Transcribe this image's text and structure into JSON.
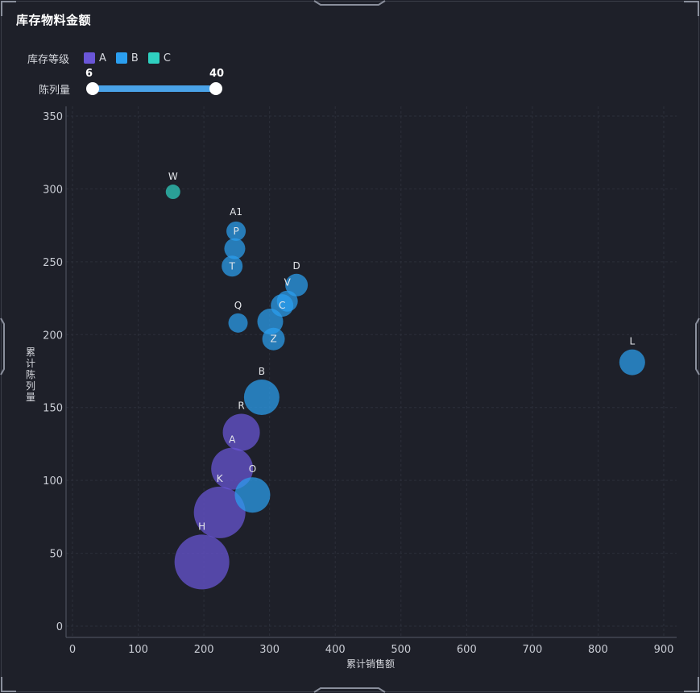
{
  "title": "库存物料金额",
  "legend": {
    "label": "库存等级",
    "items": [
      {
        "name": "A",
        "color": "#6a56d8"
      },
      {
        "name": "B",
        "color": "#2b9ff0"
      },
      {
        "name": "C",
        "color": "#2fd0c0"
      }
    ]
  },
  "slider": {
    "label": "陈列量",
    "min_value": "6",
    "max_value": "40"
  },
  "chart_data": {
    "type": "scatter",
    "xlabel": "累计销售额",
    "ylabel": "累计陈列量",
    "xlim": [
      0,
      900
    ],
    "ylim": [
      0,
      350
    ],
    "xticks": [
      0,
      100,
      200,
      300,
      400,
      500,
      600,
      700,
      800,
      900
    ],
    "yticks": [
      0,
      50,
      100,
      150,
      200,
      250,
      300,
      350
    ],
    "grid": true,
    "series": [
      {
        "name": "A",
        "color": "#6a56d8",
        "points": [
          {
            "label": "H",
            "x": 197,
            "y": 44,
            "size": 34
          },
          {
            "label": "K",
            "x": 224,
            "y": 78,
            "size": 32
          },
          {
            "label": "A",
            "x": 243,
            "y": 108,
            "size": 26
          },
          {
            "label": "R",
            "x": 257,
            "y": 133,
            "size": 23
          }
        ]
      },
      {
        "name": "B",
        "color": "#2b9ff0",
        "points": [
          {
            "label": "O",
            "x": 274,
            "y": 90,
            "size": 22
          },
          {
            "label": "B",
            "x": 288,
            "y": 157,
            "size": 22
          },
          {
            "label": "Z",
            "x": 306,
            "y": 197,
            "size": 14
          },
          {
            "label": "",
            "x": 301,
            "y": 209,
            "size": 16
          },
          {
            "label": "C",
            "x": 319,
            "y": 220,
            "size": 14
          },
          {
            "label": "V",
            "x": 327,
            "y": 223,
            "size": 13
          },
          {
            "label": "D",
            "x": 341,
            "y": 234,
            "size": 14
          },
          {
            "label": "Q",
            "x": 252,
            "y": 208,
            "size": 12
          },
          {
            "label": "T",
            "x": 243,
            "y": 247,
            "size": 13
          },
          {
            "label": "",
            "x": 247,
            "y": 259,
            "size": 13
          },
          {
            "label": "P",
            "x": 249,
            "y": 271,
            "size": 12
          },
          {
            "label": "A1",
            "x": 249,
            "y": 271,
            "size": 0
          },
          {
            "label": "L",
            "x": 852,
            "y": 181,
            "size": 16
          }
        ]
      },
      {
        "name": "C",
        "color": "#2fd0c0",
        "points": [
          {
            "label": "W",
            "x": 153,
            "y": 298,
            "size": 9
          }
        ]
      }
    ]
  }
}
